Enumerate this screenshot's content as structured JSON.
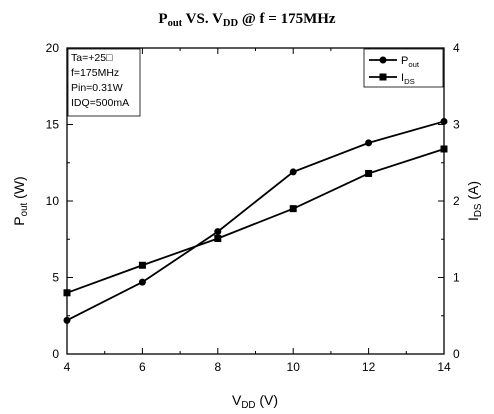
{
  "chart_data": {
    "type": "line",
    "title": {
      "main": "P",
      "main_sub": "out",
      "mid": " VS. V",
      "mid_sub": "DD",
      "tail": " @ f = 175MHz"
    },
    "xlabel": {
      "main": "V",
      "sub": "DD",
      "unit": " (V)"
    },
    "ylabel_left": {
      "main": "P",
      "sub": "out",
      "unit": " (W)"
    },
    "ylabel_right": {
      "main": "I",
      "sub": "DS",
      "unit": " (A)"
    },
    "xlim": [
      4,
      14
    ],
    "ylim_left": [
      0,
      20
    ],
    "ylim_right": [
      0,
      4
    ],
    "xticks": [
      "4",
      "6",
      "8",
      "10",
      "12",
      "14"
    ],
    "yticks_left": [
      "0",
      "5",
      "10",
      "15",
      "20"
    ],
    "yticks_right": [
      "0",
      "1",
      "2",
      "3",
      "4"
    ],
    "x": [
      4,
      6,
      8,
      10,
      12,
      14
    ],
    "series": [
      {
        "name": "P",
        "name_sub": "out",
        "axis": "left",
        "marker": "circle",
        "values": [
          2.2,
          4.7,
          8.0,
          11.9,
          13.8,
          15.2
        ]
      },
      {
        "name": "I",
        "name_sub": "DS",
        "axis": "right",
        "marker": "square",
        "values": [
          0.8,
          1.16,
          1.51,
          1.9,
          2.36,
          2.68
        ]
      }
    ],
    "conditions": [
      "Ta=+25□",
      "f=175MHz",
      "Pin=0.31W",
      "IDQ=500mA"
    ],
    "legend_placement": "top-right",
    "grid": false
  }
}
